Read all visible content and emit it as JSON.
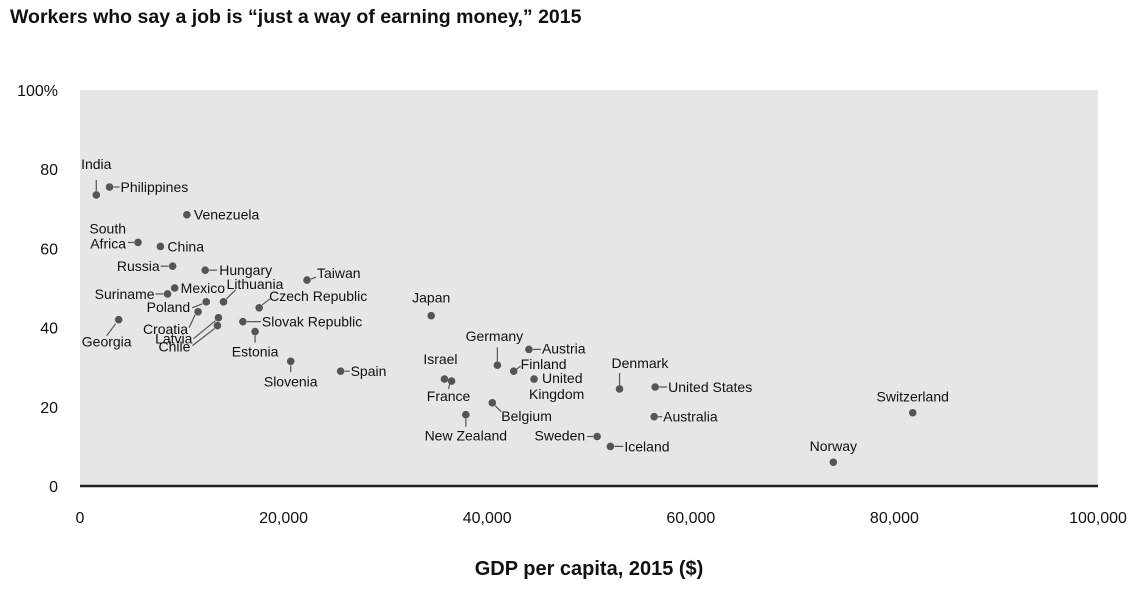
{
  "chart_data": {
    "type": "scatter",
    "title": "Workers who say a job is “just a way of earning money,” 2015",
    "xlabel": "GDP per capita, 2015 ($)",
    "ylabel": "",
    "xlim": [
      0,
      100000
    ],
    "ylim": [
      0,
      100
    ],
    "x_ticks": [
      "0",
      "20,000",
      "40,000",
      "60,000",
      "80,000",
      "100,000"
    ],
    "y_ticks": [
      "100%",
      "80",
      "60",
      "40",
      "20",
      "0"
    ],
    "colors": {
      "plot_bg": "#e6e6e6",
      "point": "#555555",
      "axis": "#222222"
    },
    "points": [
      {
        "name": "India",
        "x": 1600,
        "y": 73.5
      },
      {
        "name": "Philippines",
        "x": 2900,
        "y": 75.5
      },
      {
        "name": "Venezuela",
        "x": 10500,
        "y": 68.5
      },
      {
        "name": "South Africa",
        "x": 5700,
        "y": 61.5
      },
      {
        "name": "China",
        "x": 7900,
        "y": 60.5
      },
      {
        "name": "Russia",
        "x": 9100,
        "y": 55.5
      },
      {
        "name": "Hungary",
        "x": 12300,
        "y": 54.5
      },
      {
        "name": "Taiwan",
        "x": 22300,
        "y": 52
      },
      {
        "name": "Mexico",
        "x": 9300,
        "y": 50
      },
      {
        "name": "Suriname",
        "x": 8600,
        "y": 48.5
      },
      {
        "name": "Lithuania",
        "x": 14100,
        "y": 46.5
      },
      {
        "name": "Poland",
        "x": 12400,
        "y": 46.5
      },
      {
        "name": "Czech Republic",
        "x": 17600,
        "y": 45
      },
      {
        "name": "Croatia",
        "x": 11600,
        "y": 44
      },
      {
        "name": "Latvia",
        "x": 13600,
        "y": 42.5
      },
      {
        "name": "Slovak Republic",
        "x": 16000,
        "y": 41.5
      },
      {
        "name": "Georgia",
        "x": 3800,
        "y": 42
      },
      {
        "name": "Chile",
        "x": 13500,
        "y": 40.5
      },
      {
        "name": "Estonia",
        "x": 17200,
        "y": 39
      },
      {
        "name": "Japan",
        "x": 34500,
        "y": 43
      },
      {
        "name": "Germany",
        "x": 41000,
        "y": 30.5
      },
      {
        "name": "Austria",
        "x": 44100,
        "y": 34.5
      },
      {
        "name": "Finland",
        "x": 42600,
        "y": 29
      },
      {
        "name": "Slovenia",
        "x": 20700,
        "y": 31.5
      },
      {
        "name": "Spain",
        "x": 25600,
        "y": 29
      },
      {
        "name": "Israel",
        "x": 35800,
        "y": 27
      },
      {
        "name": "France",
        "x": 36500,
        "y": 26.5
      },
      {
        "name": "United Kingdom",
        "x": 44600,
        "y": 27
      },
      {
        "name": "Denmark",
        "x": 53000,
        "y": 24.5
      },
      {
        "name": "United States",
        "x": 56500,
        "y": 25
      },
      {
        "name": "Belgium",
        "x": 40500,
        "y": 21
      },
      {
        "name": "New Zealand",
        "x": 37900,
        "y": 18
      },
      {
        "name": "Australia",
        "x": 56400,
        "y": 17.5
      },
      {
        "name": "Switzerland",
        "x": 81800,
        "y": 18.5
      },
      {
        "name": "Sweden",
        "x": 50800,
        "y": 12.5
      },
      {
        "name": "Iceland",
        "x": 52100,
        "y": 10
      },
      {
        "name": "Norway",
        "x": 74000,
        "y": 6
      }
    ]
  }
}
